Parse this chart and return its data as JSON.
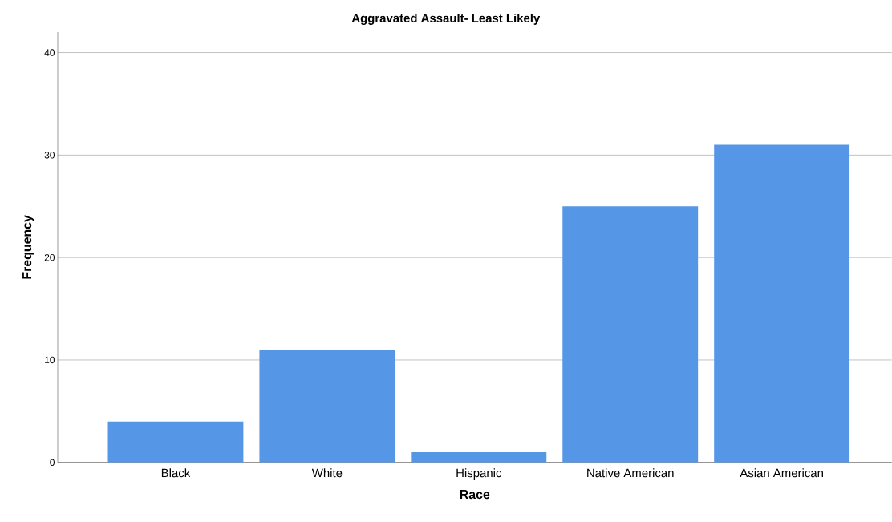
{
  "chart_data": {
    "type": "bar",
    "title": "Aggravated Assault- Least Likely",
    "xlabel": "Race",
    "ylabel": "Frequency",
    "categories": [
      "Black",
      "White",
      "Hispanic",
      "Native American",
      "Asian American"
    ],
    "values": [
      4,
      11,
      1,
      25,
      31
    ],
    "color": "#5596e6",
    "ylim": [
      0,
      42
    ],
    "yticks": [
      0,
      10,
      20,
      30,
      40
    ],
    "grid": "y"
  }
}
